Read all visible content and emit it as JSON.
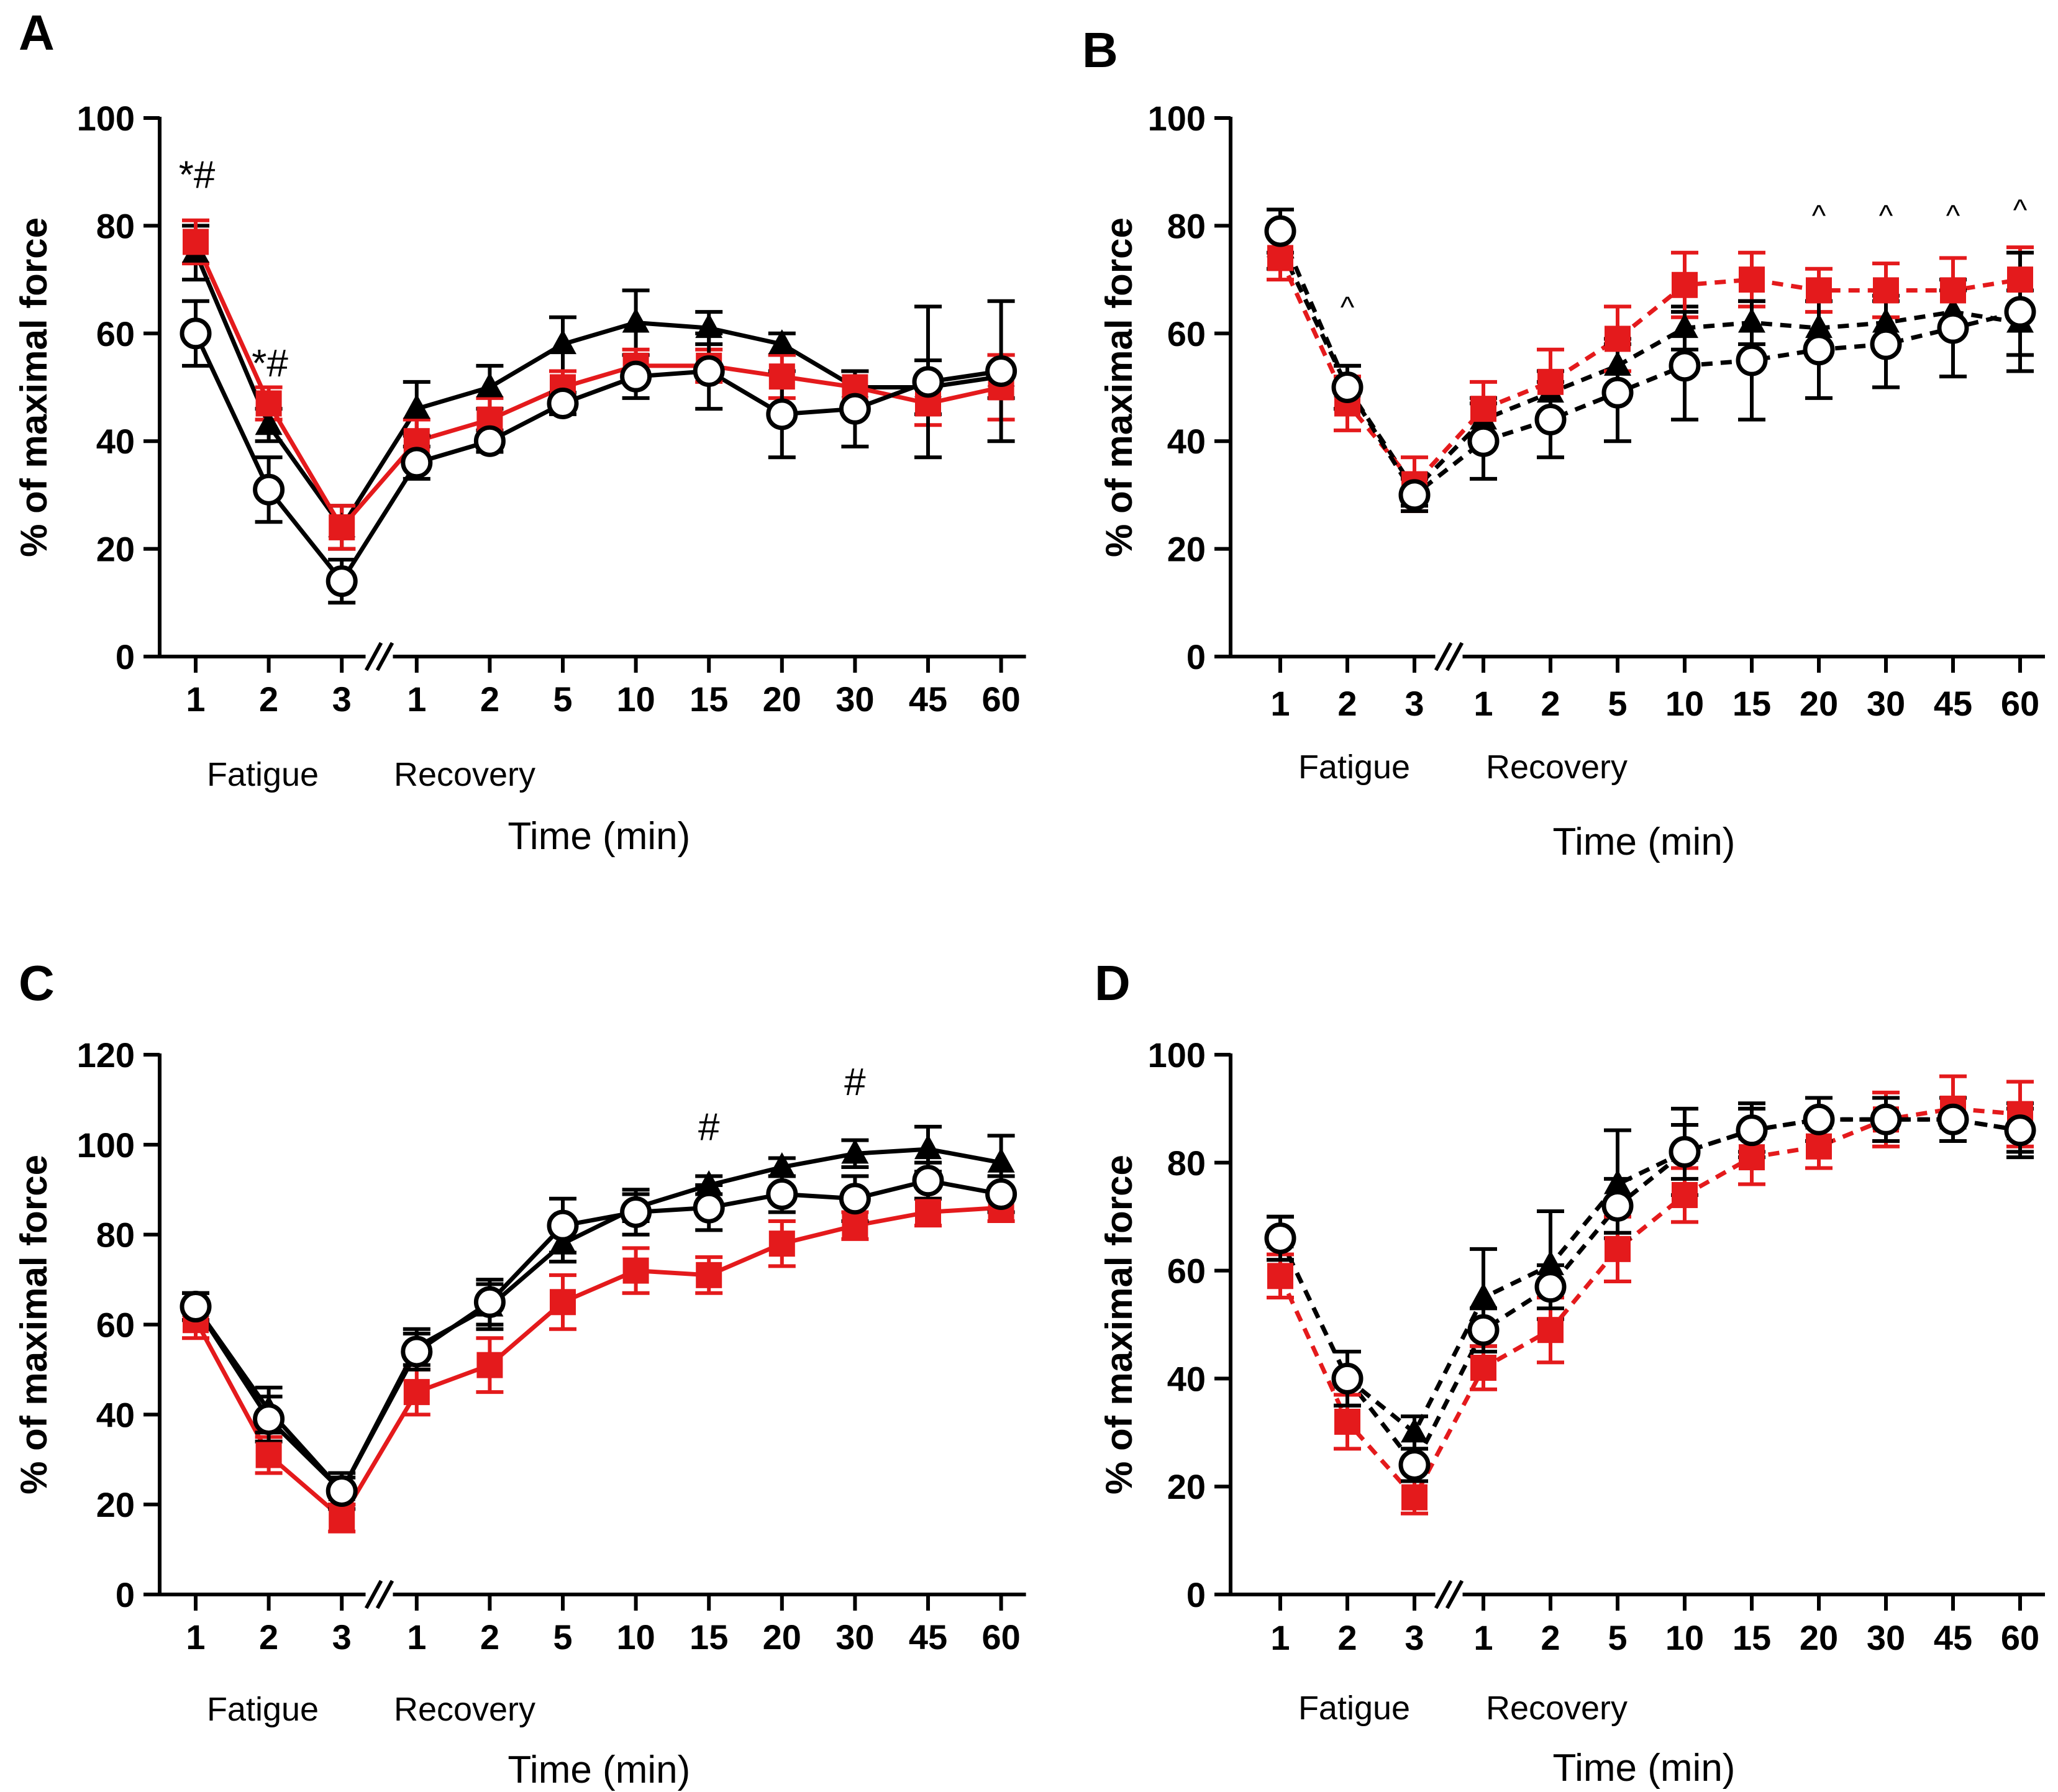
{
  "figure": {
    "colors": {
      "black": "#000000",
      "red": "#e41a1c",
      "white": "#ffffff"
    }
  },
  "chart_data": [
    {
      "panel": "A",
      "type": "line",
      "ylabel": "% of maximal force",
      "xlabel": "Time (min)",
      "ylim": [
        0,
        100
      ],
      "yticks": [
        0,
        20,
        40,
        60,
        80,
        100
      ],
      "categories": [
        "1",
        "2",
        "3",
        "1",
        "2",
        "5",
        "10",
        "15",
        "20",
        "30",
        "45",
        "60"
      ],
      "phase_labels": [
        "Fatigue",
        "Recovery"
      ],
      "line_style": "solid",
      "series": [
        {
          "name": "triangle",
          "marker": "triangle",
          "color": "#000000",
          "values": [
            75,
            43,
            24,
            46,
            50,
            58,
            62,
            61,
            58,
            50,
            50,
            52
          ],
          "errors": [
            5,
            3,
            4,
            5,
            4,
            5,
            6,
            3,
            2,
            3,
            5,
            4
          ]
        },
        {
          "name": "square",
          "marker": "square",
          "color": "#e41a1c",
          "values": [
            77,
            47,
            24,
            40,
            44,
            50,
            54,
            54,
            52,
            50,
            47,
            50
          ],
          "errors": [
            4,
            3,
            4,
            4,
            4,
            3,
            3,
            3,
            4,
            3,
            4,
            6
          ]
        },
        {
          "name": "circle",
          "marker": "circle",
          "color": "#000000",
          "values": [
            60,
            31,
            14,
            36,
            40,
            47,
            52,
            53,
            45,
            46,
            51,
            53
          ],
          "errors": [
            6,
            6,
            4,
            3,
            2,
            2,
            4,
            7,
            8,
            7,
            14,
            13
          ]
        }
      ],
      "annotations": [
        {
          "text": "*#",
          "category_index": 0,
          "y": 87
        },
        {
          "text": "*#",
          "category_index": 1,
          "y": 52
        }
      ]
    },
    {
      "panel": "B",
      "type": "line",
      "ylabel": "% of maximal force",
      "xlabel": "Time (min)",
      "ylim": [
        0,
        100
      ],
      "yticks": [
        0,
        20,
        40,
        60,
        80,
        100
      ],
      "categories": [
        "1",
        "2",
        "3",
        "1",
        "2",
        "5",
        "10",
        "15",
        "20",
        "30",
        "45",
        "60"
      ],
      "phase_labels": [
        "Fatigue",
        "Recovery"
      ],
      "line_style": "dashed",
      "series": [
        {
          "name": "triangle",
          "marker": "triangle",
          "color": "#000000",
          "values": [
            76,
            50,
            31,
            44,
            49,
            54,
            61,
            62,
            61,
            62,
            64,
            62
          ],
          "errors": [
            4,
            4,
            3,
            4,
            4,
            5,
            4,
            4,
            5,
            5,
            4,
            6
          ]
        },
        {
          "name": "square",
          "marker": "square",
          "color": "#e41a1c",
          "values": [
            74,
            47,
            32,
            46,
            51,
            59,
            69,
            70,
            68,
            68,
            68,
            70
          ],
          "errors": [
            4,
            5,
            5,
            5,
            6,
            6,
            6,
            5,
            4,
            5,
            6,
            6
          ]
        },
        {
          "name": "circle",
          "marker": "circle",
          "color": "#000000",
          "values": [
            79,
            50,
            30,
            40,
            44,
            49,
            54,
            55,
            57,
            58,
            61,
            64
          ],
          "errors": [
            4,
            4,
            3,
            7,
            7,
            9,
            10,
            11,
            9,
            8,
            9,
            11
          ]
        }
      ],
      "annotations": [
        {
          "text": "^",
          "category_index": 1,
          "y": 63
        },
        {
          "text": "^",
          "category_index": 8,
          "y": 80
        },
        {
          "text": "^",
          "category_index": 9,
          "y": 80
        },
        {
          "text": "^",
          "category_index": 10,
          "y": 80
        },
        {
          "text": "^",
          "category_index": 11,
          "y": 81
        }
      ]
    },
    {
      "panel": "C",
      "type": "line",
      "ylabel": "% of maximal force",
      "xlabel": "Time (min)",
      "ylim": [
        0,
        120
      ],
      "yticks": [
        0,
        20,
        40,
        60,
        80,
        100,
        120
      ],
      "categories": [
        "1",
        "2",
        "3",
        "1",
        "2",
        "5",
        "10",
        "15",
        "20",
        "30",
        "45",
        "60"
      ],
      "phase_labels": [
        "Fatigue",
        "Recovery"
      ],
      "line_style": "solid",
      "series": [
        {
          "name": "triangle",
          "marker": "triangle",
          "color": "#000000",
          "values": [
            64,
            41,
            23,
            55,
            64,
            78,
            86,
            91,
            95,
            98,
            99,
            96
          ],
          "errors": [
            3,
            5,
            3,
            4,
            5,
            4,
            3,
            2,
            2,
            3,
            5,
            6
          ]
        },
        {
          "name": "square",
          "marker": "square",
          "color": "#e41a1c",
          "values": [
            61,
            31,
            17,
            45,
            51,
            65,
            72,
            71,
            78,
            82,
            85,
            86
          ],
          "errors": [
            4,
            4,
            3,
            5,
            6,
            6,
            5,
            4,
            5,
            3,
            3,
            3
          ]
        },
        {
          "name": "circle",
          "marker": "circle",
          "color": "#000000",
          "values": [
            64,
            39,
            23,
            54,
            65,
            82,
            85,
            86,
            89,
            88,
            92,
            89
          ],
          "errors": [
            3,
            5,
            4,
            4,
            5,
            6,
            5,
            5,
            4,
            5,
            4,
            4
          ]
        }
      ],
      "annotations": [
        {
          "text": "#",
          "category_index": 7,
          "y": 101
        },
        {
          "text": "#",
          "category_index": 9,
          "y": 111
        }
      ]
    },
    {
      "panel": "D",
      "type": "line",
      "ylabel": "% of maximal force",
      "xlabel": "Time (min)",
      "ylim": [
        0,
        100
      ],
      "yticks": [
        0,
        20,
        40,
        60,
        80,
        100
      ],
      "categories": [
        "1",
        "2",
        "3",
        "1",
        "2",
        "5",
        "10",
        "15",
        "20",
        "30",
        "45",
        "60"
      ],
      "phase_labels": [
        "Fatigue",
        "Recovery"
      ],
      "line_style": "dashed",
      "series": [
        {
          "name": "triangle",
          "marker": "triangle",
          "color": "#000000",
          "values": [
            66,
            40,
            30,
            55,
            61,
            76,
            82,
            86,
            88,
            88,
            88,
            86
          ],
          "errors": [
            4,
            5,
            3,
            9,
            10,
            10,
            8,
            5,
            4,
            4,
            4,
            5
          ]
        },
        {
          "name": "square",
          "marker": "square",
          "color": "#e41a1c",
          "values": [
            59,
            32,
            18,
            42,
            49,
            64,
            74,
            81,
            83,
            88,
            90,
            89
          ],
          "errors": [
            4,
            5,
            3,
            4,
            6,
            6,
            5,
            5,
            4,
            5,
            6,
            6
          ]
        },
        {
          "name": "circle",
          "marker": "circle",
          "color": "#000000",
          "values": [
            66,
            40,
            24,
            49,
            57,
            72,
            82,
            86,
            88,
            88,
            88,
            86
          ],
          "errors": [
            4,
            5,
            3,
            4,
            4,
            5,
            5,
            4,
            4,
            4,
            4,
            4
          ]
        }
      ],
      "annotations": []
    }
  ]
}
